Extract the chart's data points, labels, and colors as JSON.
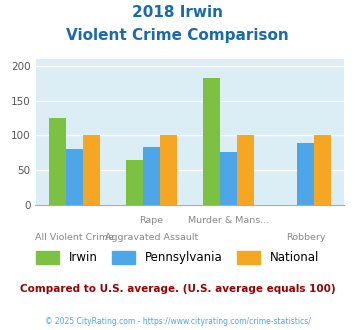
{
  "title_line1": "2018 Irwin",
  "title_line2": "Violent Crime Comparison",
  "groups": [
    {
      "name": "Irwin",
      "values": [
        125,
        65,
        183,
        null
      ],
      "color": "#7dc142"
    },
    {
      "name": "Pennsylvania",
      "values": [
        80,
        83,
        76,
        89
      ],
      "color": "#4da6e8"
    },
    {
      "name": "National",
      "values": [
        100,
        100,
        100,
        100
      ],
      "color": "#f5a623"
    }
  ],
  "top_labels": [
    "",
    "Rape",
    "Murder & Mans...",
    ""
  ],
  "bottom_labels": [
    "All Violent Crime",
    "Aggravated Assault",
    "",
    "Robbery"
  ],
  "ylim": [
    0,
    210
  ],
  "yticks": [
    0,
    50,
    100,
    150,
    200
  ],
  "bar_width": 0.22,
  "plot_bg_color": "#dceef5",
  "title_color": "#1a6aad",
  "footer_text": "Compared to U.S. average. (U.S. average equals 100)",
  "footer_color": "#990000",
  "copyright_text": "© 2025 CityRating.com - https://www.cityrating.com/crime-statistics/",
  "copyright_color": "#4da6e8",
  "legend_colors": [
    "#7dc142",
    "#4da6e8",
    "#f5a623"
  ],
  "legend_labels": [
    "Irwin",
    "Pennsylvania",
    "National"
  ]
}
